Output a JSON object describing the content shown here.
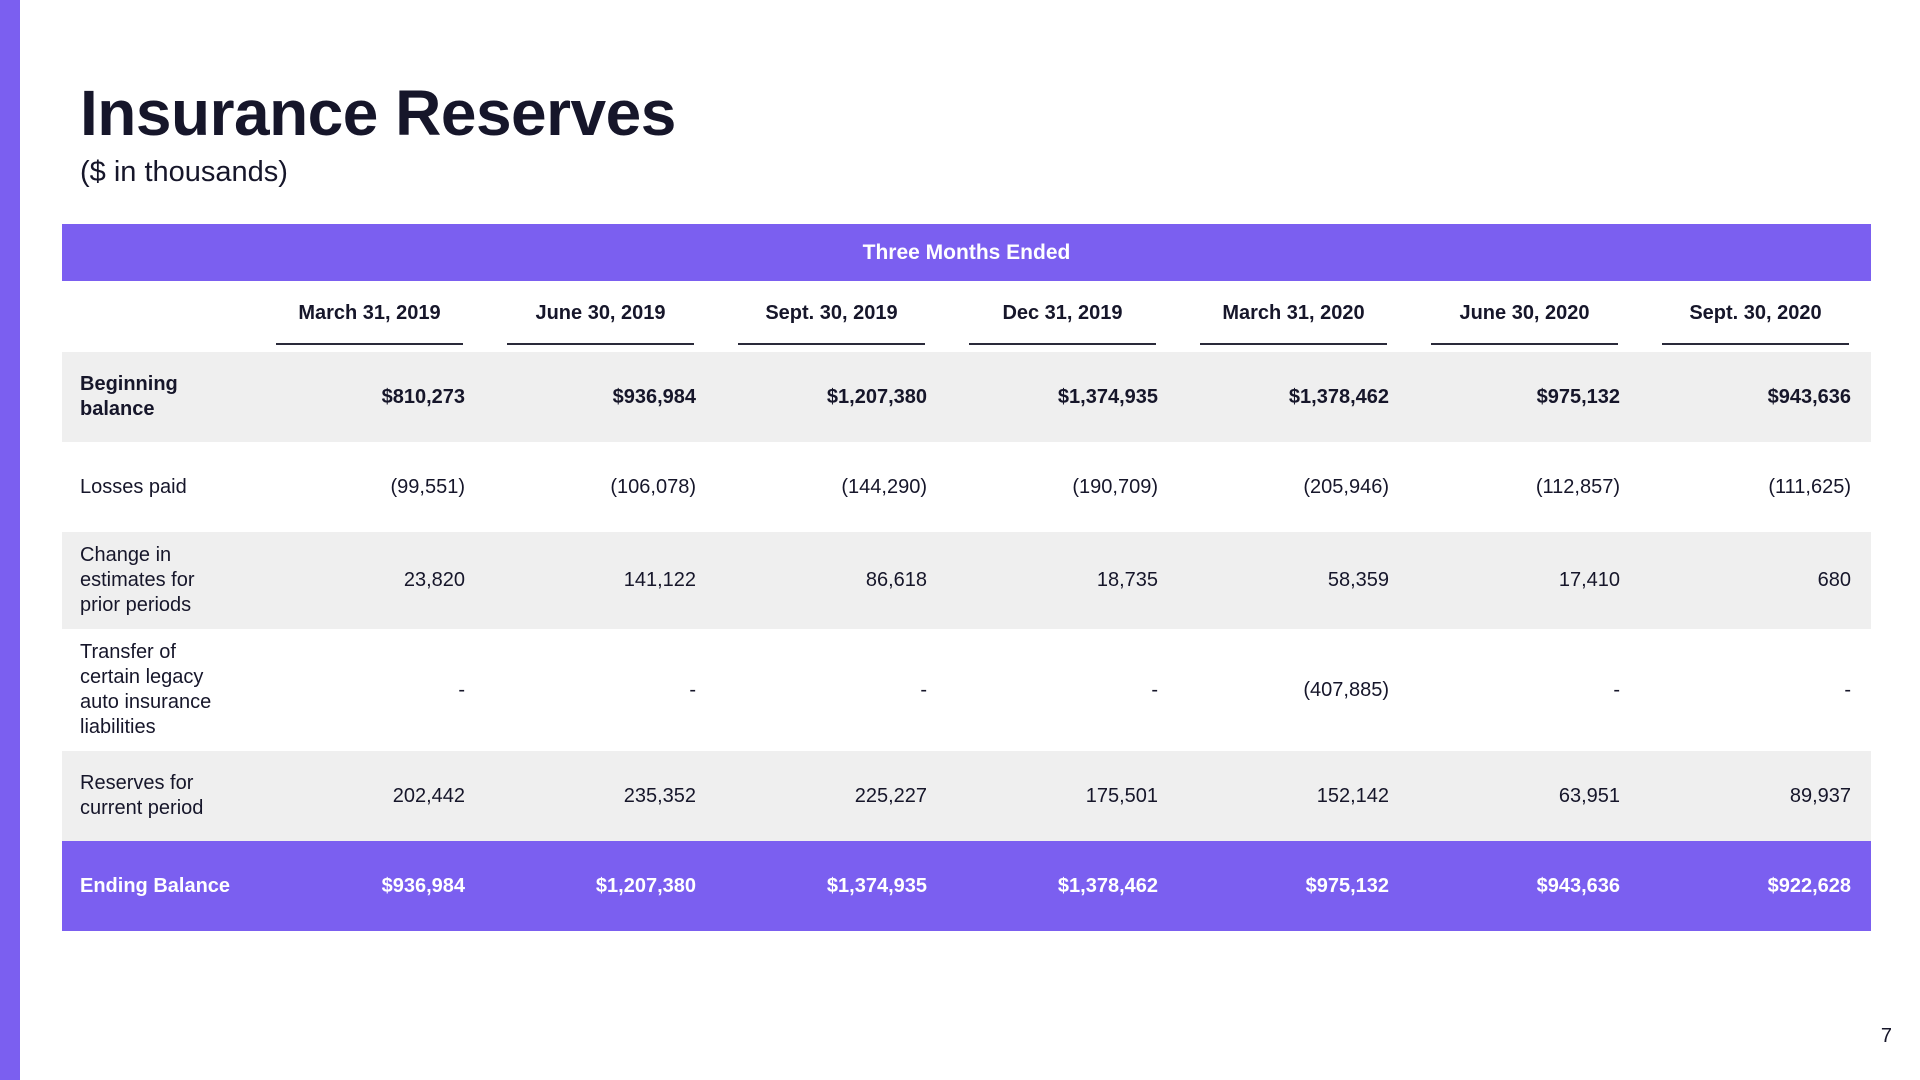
{
  "page": {
    "title": "Insurance Reserves",
    "subtitle": "($ in thousands)",
    "page_number": "7",
    "accent_color": "#7b5ff0"
  },
  "table": {
    "band_label": "Three Months Ended",
    "columns": [
      "March 31, 2019",
      "June 30, 2019",
      "Sept. 30, 2019",
      "Dec 31, 2019",
      "March 31, 2020",
      "June 30, 2020",
      "Sept. 30, 2020"
    ],
    "rows": [
      {
        "label": "Beginning balance",
        "values": [
          "$810,273",
          "$936,984",
          "$1,207,380",
          "$1,374,935",
          "$1,378,462",
          "$975,132",
          "$943,636"
        ]
      },
      {
        "label": "Losses paid",
        "values": [
          "(99,551)",
          "(106,078)",
          "(144,290)",
          "(190,709)",
          "(205,946)",
          "(112,857)",
          "(111,625)"
        ]
      },
      {
        "label": "Change in estimates for prior periods",
        "values": [
          "23,820",
          "141,122",
          "86,618",
          "18,735",
          "58,359",
          "17,410",
          "680"
        ]
      },
      {
        "label": "Transfer of certain legacy auto insurance liabilities",
        "values": [
          "-",
          "-",
          "-",
          "-",
          "(407,885)",
          "-",
          "-"
        ]
      },
      {
        "label": "Reserves for current period",
        "values": [
          "202,442",
          "235,352",
          "225,227",
          "175,501",
          "152,142",
          "63,951",
          "89,937"
        ]
      },
      {
        "label": "Ending Balance",
        "values": [
          "$936,984",
          "$1,207,380",
          "$1,374,935",
          "$1,378,462",
          "$975,132",
          "$943,636",
          "$922,628"
        ]
      }
    ]
  }
}
